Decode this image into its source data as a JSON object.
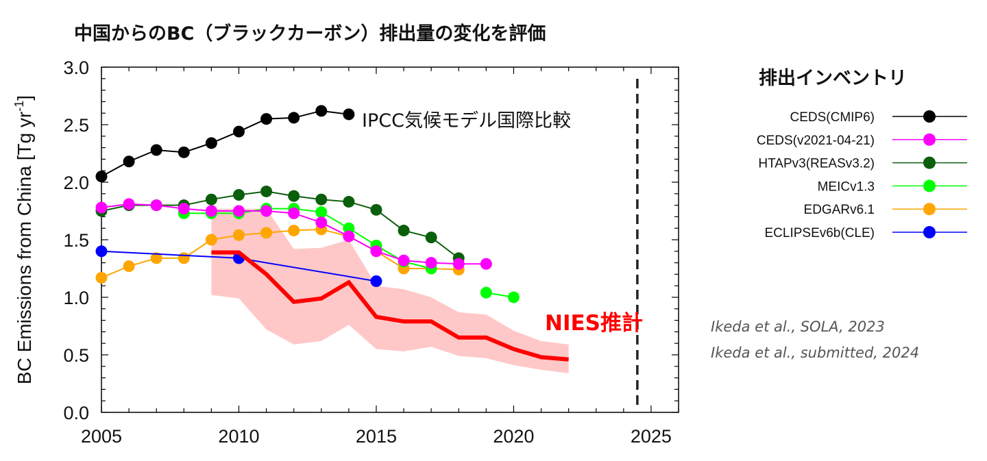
{
  "chart_data": {
    "type": "line",
    "title": "中国からのBC（ブラックカーボン）排出量の変化を評価",
    "ylabel": "BC Emissions from China [Tg yr",
    "ylabel_sup": "-1",
    "ylabel_end": "]",
    "xlabel": "",
    "xlim": [
      2005,
      2026
    ],
    "ylim": [
      0.0,
      3.0
    ],
    "x_ticks": [
      2005,
      2010,
      2015,
      2020,
      2025
    ],
    "x_tick_labels": [
      "2005",
      "2010",
      "2015",
      "2020",
      "2025"
    ],
    "y_ticks": [
      0.0,
      0.5,
      1.0,
      1.5,
      2.0,
      2.5,
      3.0
    ],
    "y_tick_labels": [
      "0.0",
      "0.5",
      "1.0",
      "1.5",
      "2.0",
      "2.5",
      "3.0"
    ],
    "grid": false,
    "legend_title": "排出インベントリ",
    "legend_position": "right",
    "series": [
      {
        "name": "CEDS(CMIP6)",
        "color": "#000000",
        "x": [
          2005,
          2006,
          2007,
          2008,
          2009,
          2010,
          2011,
          2012,
          2013,
          2014
        ],
        "y": [
          2.05,
          2.18,
          2.28,
          2.26,
          2.34,
          2.44,
          2.55,
          2.56,
          2.62,
          2.59
        ]
      },
      {
        "name": "CEDS(v2021-04-21)",
        "color": "#ff00ff",
        "x": [
          2005,
          2006,
          2007,
          2008,
          2009,
          2010,
          2011,
          2012,
          2013,
          2014,
          2015,
          2016,
          2017,
          2018,
          2019
        ],
        "y": [
          1.78,
          1.81,
          1.8,
          1.77,
          1.75,
          1.75,
          1.75,
          1.73,
          1.65,
          1.53,
          1.4,
          1.32,
          1.3,
          1.29,
          1.29
        ]
      },
      {
        "name": "HTAPv3(REASv3.2)",
        "color": "#0b5e0b",
        "x": [
          2005,
          2006,
          2007,
          2008,
          2009,
          2010,
          2011,
          2012,
          2013,
          2014,
          2015,
          2016,
          2017,
          2018
        ],
        "y": [
          1.75,
          1.8,
          1.8,
          1.8,
          1.85,
          1.89,
          1.92,
          1.88,
          1.85,
          1.83,
          1.76,
          1.58,
          1.52,
          1.34
        ]
      },
      {
        "name": "MEICv1.3",
        "color": "#00ff00",
        "x": [
          2008,
          2009,
          2010,
          2011,
          2012,
          2013,
          2014,
          2015,
          2016,
          2017
        ],
        "y": [
          1.73,
          1.73,
          1.73,
          1.77,
          1.77,
          1.74,
          1.6,
          1.45,
          1.31,
          1.25
        ],
        "extra_x": [
          2019,
          2020
        ],
        "extra_y": [
          1.04,
          1.0
        ]
      },
      {
        "name": "EDGARv6.1",
        "color": "#ffa500",
        "x": [
          2005,
          2006,
          2007,
          2008,
          2009,
          2010,
          2011,
          2012,
          2013,
          2014,
          2015,
          2016,
          2017,
          2018
        ],
        "y": [
          1.17,
          1.27,
          1.34,
          1.34,
          1.5,
          1.54,
          1.56,
          1.58,
          1.59,
          1.53,
          1.4,
          1.25,
          1.25,
          1.24
        ]
      },
      {
        "name": "ECLIPSEv6b(CLE)",
        "color": "#0000ff",
        "x": [
          2005,
          2010,
          2015
        ],
        "y": [
          1.4,
          1.34,
          1.14
        ]
      },
      {
        "name": "NIES推計",
        "color": "#ff0000",
        "x": [
          2009,
          2010,
          2011,
          2012,
          2013,
          2014,
          2015,
          2016,
          2017,
          2018,
          2019,
          2020,
          2021,
          2022
        ],
        "y": [
          1.39,
          1.39,
          1.2,
          0.96,
          0.99,
          1.13,
          0.83,
          0.79,
          0.79,
          0.65,
          0.65,
          0.55,
          0.48,
          0.46
        ],
        "band_color": "#ffc8c8",
        "band_lower": [
          1.02,
          0.99,
          0.72,
          0.59,
          0.62,
          0.76,
          0.55,
          0.53,
          0.57,
          0.49,
          0.47,
          0.41,
          0.37,
          0.34
        ],
        "band_upper": [
          1.77,
          1.77,
          1.77,
          1.42,
          1.43,
          1.5,
          1.1,
          1.07,
          1.0,
          0.87,
          0.85,
          0.71,
          0.62,
          0.59
        ]
      }
    ],
    "vertical_line": {
      "x": 2024.5,
      "style": "dashed",
      "color": "#222222"
    },
    "annotations": {
      "ipcc": "IPCC気候モデル国際比較",
      "nies": "NIES推計"
    },
    "citations": [
      "Ikeda et al., SOLA, 2023",
      "Ikeda et al., submitted, 2024"
    ]
  }
}
